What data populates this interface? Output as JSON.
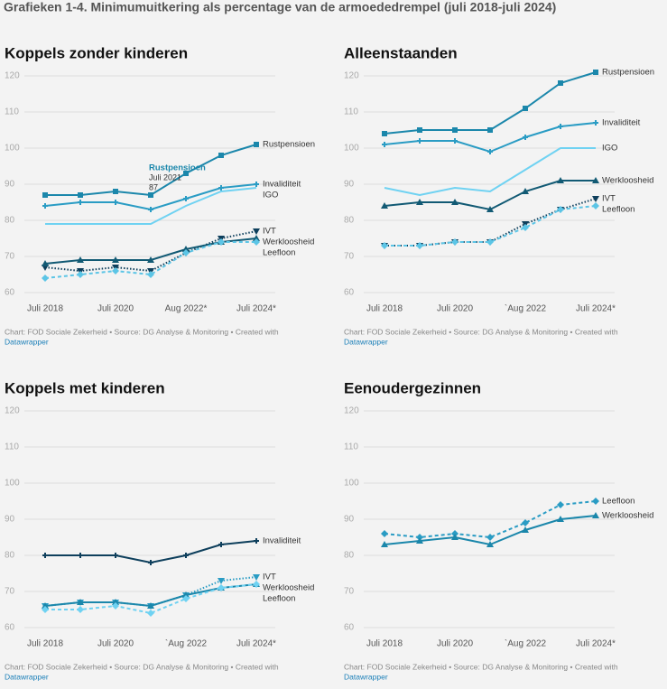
{
  "page_title": "Grafieken 1-4. Minimumuitkering als percentage van de armoededrempel (juli 2018-juli 2024)",
  "chart_data": [
    {
      "type": "line",
      "title": "Koppels zonder kinderen",
      "categories": [
        "Juli 2018",
        null,
        "Juli 2020",
        null,
        "Aug 2022*",
        null,
        "Juli 2024*"
      ],
      "ylim": [
        60,
        120
      ],
      "yticks": [
        60,
        70,
        80,
        90,
        100,
        110,
        120
      ],
      "grid": true,
      "series": [
        {
          "name": "Rustpensioen",
          "color": "#1b87ab",
          "line_style": "solid",
          "marker": "square",
          "values": [
            87,
            87,
            88,
            87,
            93,
            98,
            101
          ]
        },
        {
          "name": "Invaliditeit",
          "color": "#2a9cc4",
          "line_style": "solid",
          "marker": "plus",
          "values": [
            84,
            85,
            85,
            83,
            86,
            89,
            90
          ]
        },
        {
          "name": "IGO",
          "color": "#6fd2f2",
          "line_style": "solid",
          "marker": "none",
          "values": [
            79,
            79,
            79,
            79,
            84,
            88,
            89
          ]
        },
        {
          "name": "IVT",
          "color": "#0e3f5c",
          "line_style": "dotted",
          "marker": "triangle-down",
          "values": [
            67,
            66,
            67,
            66,
            71,
            75,
            77
          ]
        },
        {
          "name": "Werkloosheid",
          "color": "#125a74",
          "line_style": "solid",
          "marker": "triangle-up",
          "values": [
            68,
            69,
            69,
            69,
            72,
            74,
            75
          ]
        },
        {
          "name": "Leefloon",
          "color": "#5cc5e6",
          "line_style": "dashed",
          "marker": "diamond",
          "values": [
            64,
            65,
            66,
            65,
            71,
            74,
            74
          ]
        }
      ],
      "annotations": [
        {
          "series": 0,
          "index": 3,
          "title": "Rustpensioen",
          "label": "Juli 2021",
          "value": 87
        }
      ],
      "source": "Chart: FOD Sociale Zekerheid • Source: DG Analyse & Monitoring • Created with",
      "credit": "Datawrapper"
    },
    {
      "type": "line",
      "title": "Alleenstaanden",
      "categories": [
        "Juli 2018",
        null,
        "Juli 2020",
        null,
        "`Aug 2022",
        null,
        "Juli 2024*"
      ],
      "ylim": [
        60,
        120
      ],
      "yticks": [
        60,
        70,
        80,
        90,
        100,
        110,
        120
      ],
      "grid": true,
      "series": [
        {
          "name": "Rustpensioen",
          "color": "#1b87ab",
          "line_style": "solid",
          "marker": "square",
          "values": [
            104,
            105,
            105,
            105,
            111,
            118,
            121
          ]
        },
        {
          "name": "Invaliditeit",
          "color": "#2a9cc4",
          "line_style": "solid",
          "marker": "plus",
          "values": [
            101,
            102,
            102,
            99,
            103,
            106,
            107
          ]
        },
        {
          "name": "IGO",
          "color": "#6fd2f2",
          "line_style": "solid",
          "marker": "none",
          "values": [
            89,
            87,
            89,
            88,
            94,
            100,
            100
          ]
        },
        {
          "name": "Werkloosheid",
          "color": "#125a74",
          "line_style": "solid",
          "marker": "triangle-up",
          "values": [
            84,
            85,
            85,
            83,
            88,
            91,
            91
          ]
        },
        {
          "name": "IVT",
          "color": "#0e3f5c",
          "line_style": "dotted",
          "marker": "triangle-down",
          "values": [
            73,
            73,
            74,
            74,
            79,
            83,
            86
          ]
        },
        {
          "name": "Leefloon",
          "color": "#5cc5e6",
          "line_style": "dashed",
          "marker": "diamond",
          "values": [
            73,
            73,
            74,
            74,
            78,
            83,
            84
          ]
        }
      ],
      "source": "Chart: FOD Sociale Zekerheid • Source: DG Analyse & Monitoring • Created with",
      "credit": "Datawrapper"
    },
    {
      "type": "line",
      "title": "Koppels met kinderen",
      "categories": [
        "Juli 2018",
        null,
        "Juli 2020",
        null,
        "`Aug 2022",
        null,
        "Juli 2024*"
      ],
      "ylim": [
        60,
        120
      ],
      "yticks": [
        60,
        70,
        80,
        90,
        100,
        110,
        120
      ],
      "grid": true,
      "series": [
        {
          "name": "Invaliditeit",
          "color": "#0e3f5c",
          "line_style": "solid",
          "marker": "plus",
          "values": [
            80,
            80,
            80,
            78,
            80,
            83,
            84
          ]
        },
        {
          "name": "IVT",
          "color": "#2a9cc4",
          "line_style": "dotted",
          "marker": "triangle-down",
          "values": [
            66,
            67,
            67,
            66,
            69,
            73,
            74
          ]
        },
        {
          "name": "Werkloosheid",
          "color": "#1b87ab",
          "line_style": "solid",
          "marker": "triangle-up",
          "values": [
            66,
            67,
            67,
            66,
            69,
            71,
            72
          ]
        },
        {
          "name": "Leefloon",
          "color": "#6fd2f2",
          "line_style": "dashed",
          "marker": "diamond",
          "values": [
            65,
            65,
            66,
            64,
            68,
            71,
            72
          ]
        }
      ],
      "source": "Chart: FOD Sociale Zekerheid • Source: DG Analyse & Monitoring • Created with",
      "credit": "Datawrapper"
    },
    {
      "type": "line",
      "title": "Eenoudergezinnen",
      "categories": [
        "Juli 2018",
        null,
        "Juli 2020",
        null,
        "`Aug 2022",
        null,
        "Juli 2024*"
      ],
      "ylim": [
        60,
        120
      ],
      "yticks": [
        60,
        70,
        80,
        90,
        100,
        110,
        120
      ],
      "grid": true,
      "series": [
        {
          "name": "Leefloon",
          "color": "#2a9cc4",
          "line_style": "dashed",
          "marker": "diamond",
          "values": [
            86,
            85,
            86,
            85,
            89,
            94,
            95
          ]
        },
        {
          "name": "Werkloosheid",
          "color": "#1b87ab",
          "line_style": "solid",
          "marker": "triangle-up",
          "values": [
            83,
            84,
            85,
            83,
            87,
            90,
            91
          ]
        }
      ],
      "source": "Chart: FOD Sociale Zekerheid • Source: DG Analyse & Monitoring • Created with",
      "credit": "Datawrapper"
    }
  ]
}
